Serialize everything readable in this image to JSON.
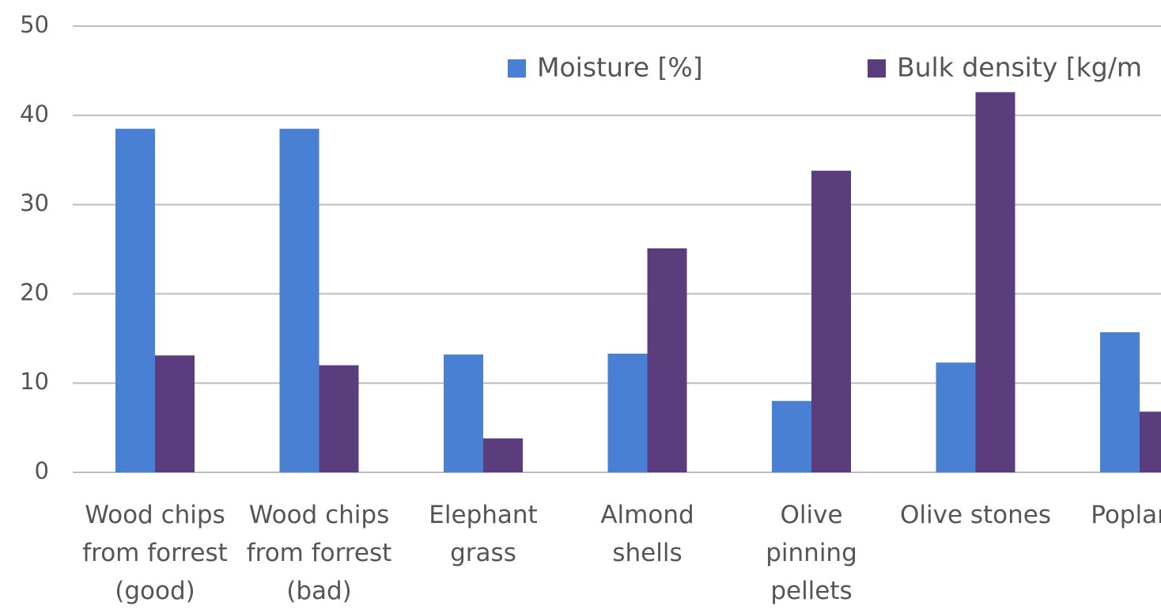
{
  "chart_data": {
    "type": "bar",
    "categories": [
      "Wood chips from forrest (good)",
      "Wood chips from forrest (bad)",
      "Elephant grass",
      "Almond shells",
      "Olive pinning pellets",
      "Olive stones",
      "Poplar c"
    ],
    "series": [
      {
        "name": "Moisture [%]",
        "color": "#4a80d3",
        "values": [
          38.5,
          38.5,
          13.2,
          13.3,
          8.0,
          12.3,
          15.7
        ]
      },
      {
        "name": "Bulk density [kg/m",
        "color": "#5b3d7d",
        "values": [
          13.1,
          12.0,
          3.8,
          25.1,
          33.8,
          42.6,
          6.8
        ]
      }
    ],
    "ylim": [
      0,
      50
    ],
    "yticks": [
      0,
      10,
      20,
      30,
      40,
      50
    ],
    "grid": true
  }
}
